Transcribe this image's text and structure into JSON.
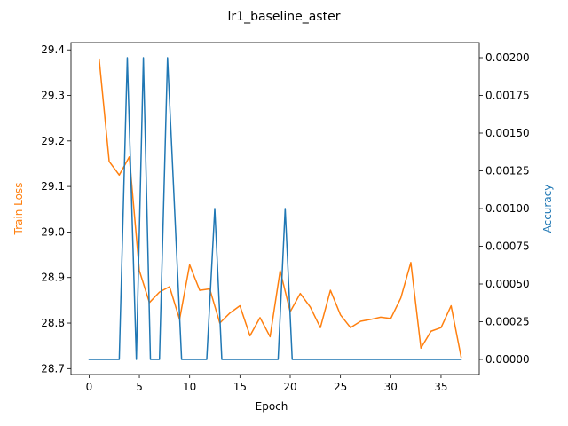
{
  "chart_data": {
    "type": "line",
    "title": "lr1_baseline_aster",
    "xlabel": "Epoch",
    "ylabel_left": "Train Loss",
    "ylabel_right": "Accuracy",
    "xlim": [
      -1.8,
      38.8
    ],
    "ylim_left": [
      28.687,
      29.416
    ],
    "ylim_right": [
      -0.0001,
      0.0021
    ],
    "x_ticks": [
      0,
      5,
      10,
      15,
      20,
      25,
      30,
      35
    ],
    "y_left_ticks": [
      28.7,
      28.8,
      28.9,
      29.0,
      29.1,
      29.2,
      29.3,
      29.4
    ],
    "y_right_ticks": [
      0.0,
      0.00025,
      0.0005,
      0.00075,
      0.001,
      0.00125,
      0.0015,
      0.00175,
      0.002
    ],
    "y_left_tick_labels": [
      "28.7",
      "28.8",
      "28.9",
      "29.0",
      "29.1",
      "29.2",
      "29.3",
      "29.4"
    ],
    "y_right_tick_labels": [
      "0.00000",
      "0.00025",
      "0.00050",
      "0.00075",
      "0.00100",
      "0.00125",
      "0.00150",
      "0.00175",
      "0.00200"
    ],
    "colors": {
      "loss": "#ff7f0e",
      "accuracy": "#1f77b4"
    },
    "series": [
      {
        "axis": "left",
        "x": [
          1,
          2,
          3,
          4,
          5,
          6,
          7,
          8,
          9,
          10,
          11,
          12,
          13,
          14,
          15,
          16,
          17,
          18,
          19,
          20,
          21,
          22,
          23,
          24,
          25,
          26,
          27,
          28,
          29,
          30,
          31,
          32,
          33,
          34,
          35,
          36,
          37
        ],
        "values": [
          29.38,
          29.155,
          29.125,
          29.165,
          28.915,
          28.845,
          28.868,
          28.88,
          28.808,
          28.928,
          28.872,
          28.875,
          28.8,
          28.822,
          28.838,
          28.772,
          28.812,
          28.77,
          28.915,
          28.825,
          28.865,
          28.835,
          28.79,
          28.872,
          28.818,
          28.79,
          28.804,
          28.808,
          28.813,
          28.81,
          28.855,
          28.933,
          28.745,
          28.782,
          28.79,
          28.838,
          28.725
        ]
      },
      {
        "axis": "right",
        "x": [
          0,
          1,
          2,
          3,
          3.8,
          4.7,
          5.4,
          6.1,
          7,
          7.8,
          9.2,
          10,
          11,
          11.7,
          12.5,
          13.2,
          14,
          15,
          16,
          17,
          18,
          18.8,
          19.5,
          20.2,
          21,
          22,
          23,
          24,
          25,
          26,
          27,
          28,
          29,
          30,
          31,
          32,
          33,
          34,
          35,
          36,
          37
        ],
        "values": [
          0,
          0,
          0,
          0,
          0.002,
          0,
          0.002,
          0,
          0,
          0.002,
          0,
          0,
          0,
          0,
          0.001,
          0,
          0,
          0,
          0,
          0,
          0,
          0,
          0.001,
          0,
          0,
          0,
          0,
          0,
          0,
          0,
          0,
          0,
          0,
          0,
          0,
          0,
          0,
          0,
          0,
          0,
          0
        ]
      }
    ]
  }
}
